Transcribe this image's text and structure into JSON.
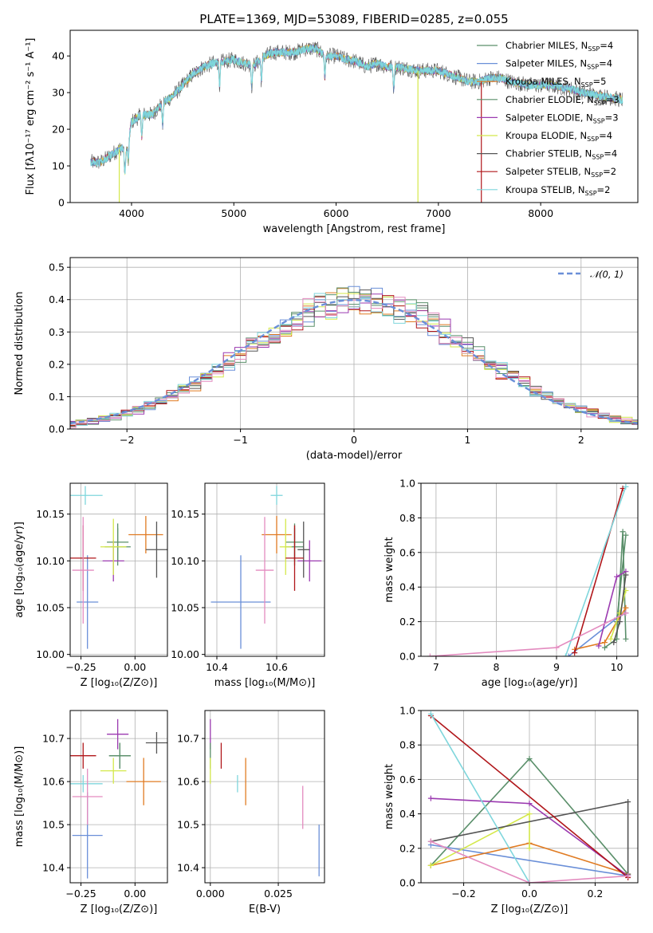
{
  "figure_title": "PLATE=1369, MJD=53089, FIBERID=0285, z=0.055",
  "colors": {
    "Chabrier MILES": "#5a8f6a",
    "Salpeter MILES": "#6a8fd8",
    "Kroupa MILES": "#e07b22",
    "Chabrier ELODIE": "#5a8f6a",
    "Salpeter ELODIE": "#9b3ab0",
    "Kroupa ELODIE": "#d4e84a",
    "Chabrier STELIB": "#555555",
    "Salpeter STELIB": "#b0161a",
    "Kroupa STELIB": "#7fd6dc",
    "grid": "#b0b0b0"
  },
  "chart_data": [
    {
      "id": "spectrum",
      "type": "line",
      "title": "PLATE=1369, MJD=53089, FIBERID=0285, z=0.055",
      "xlabel": "wavelength [Angstrom, rest frame]",
      "ylabel": "Flux [fλ10⁻¹⁷ erg cm⁻² s⁻¹ A⁻¹]",
      "xlim": [
        3400,
        8950
      ],
      "ylim": [
        0,
        47
      ],
      "xticks": [
        4000,
        5000,
        6000,
        7000,
        8000
      ],
      "yticks": [
        0,
        10,
        20,
        30,
        40
      ],
      "grid": false,
      "legend_position": "top-right",
      "legend": [
        {
          "name": "Chabrier MILES, N",
          "sub": "SSP",
          "value": "=4"
        },
        {
          "name": "Salpeter MILES, N",
          "sub": "SSP",
          "value": "=4"
        },
        {
          "name": "Kroupa MILES, N",
          "sub": "SSP",
          "value": "=5"
        },
        {
          "name": "Chabrier ELODIE, N",
          "sub": "SSP",
          "value": "=3"
        },
        {
          "name": "Salpeter ELODIE, N",
          "sub": "SSP",
          "value": "=3"
        },
        {
          "name": "Kroupa ELODIE, N",
          "sub": "SSP",
          "value": "=4"
        },
        {
          "name": "Chabrier STELIB, N",
          "sub": "SSP",
          "value": "=4"
        },
        {
          "name": "Salpeter STELIB, N",
          "sub": "SSP",
          "value": "=2"
        },
        {
          "name": "Kroupa STELIB, N",
          "sub": "SSP",
          "value": "=2"
        }
      ],
      "continuum": [
        [
          3600,
          11
        ],
        [
          3700,
          11
        ],
        [
          3800,
          13
        ],
        [
          3900,
          15
        ],
        [
          3950,
          14
        ],
        [
          4000,
          22
        ],
        [
          4100,
          24
        ],
        [
          4200,
          24
        ],
        [
          4300,
          27
        ],
        [
          4400,
          29
        ],
        [
          4500,
          32
        ],
        [
          4600,
          35
        ],
        [
          4700,
          37
        ],
        [
          4800,
          38
        ],
        [
          4900,
          38.5
        ],
        [
          5000,
          39
        ],
        [
          5100,
          38
        ],
        [
          5200,
          37.5
        ],
        [
          5300,
          40
        ],
        [
          5400,
          41
        ],
        [
          5500,
          41
        ],
        [
          5600,
          41
        ],
        [
          5700,
          42
        ],
        [
          5800,
          42
        ],
        [
          5900,
          40
        ],
        [
          6000,
          40
        ],
        [
          6100,
          39
        ],
        [
          6200,
          38.5
        ],
        [
          6300,
          37
        ],
        [
          6400,
          38
        ],
        [
          6500,
          37
        ],
        [
          6600,
          37
        ],
        [
          6700,
          36.5
        ],
        [
          6800,
          36
        ],
        [
          6900,
          36
        ],
        [
          7000,
          36
        ],
        [
          7100,
          35
        ],
        [
          7200,
          34
        ],
        [
          7300,
          33
        ],
        [
          7400,
          33
        ],
        [
          7500,
          34
        ],
        [
          7600,
          34
        ],
        [
          7700,
          33
        ],
        [
          7800,
          32.5
        ],
        [
          7900,
          32
        ],
        [
          8000,
          32
        ],
        [
          8100,
          32
        ],
        [
          8200,
          31.5
        ],
        [
          8300,
          31
        ],
        [
          8400,
          30
        ],
        [
          8500,
          29.5
        ],
        [
          8600,
          29
        ],
        [
          8700,
          28.5
        ],
        [
          8800,
          28
        ]
      ]
    },
    {
      "id": "residuals",
      "type": "line",
      "xlabel": "(data-model)/error",
      "ylabel": "Normed distribution",
      "xlim": [
        -2.5,
        2.5
      ],
      "ylim": [
        0,
        0.53
      ],
      "xticks": [
        -2,
        -1,
        0,
        1,
        2
      ],
      "yticks": [
        0.0,
        0.1,
        0.2,
        0.3,
        0.4,
        0.5
      ],
      "grid": true,
      "legend_position": "top-right",
      "legend": [
        {
          "name": "𝒩(0, 1)",
          "style": "dashed",
          "color": "#6a8fd8"
        }
      ],
      "bin_width": 0.1,
      "model": "normal(0,1)"
    },
    {
      "id": "age_vs_Z",
      "type": "scatter",
      "xlabel": "Z [log₁₀(Z/Z⊙)]",
      "ylabel": "age  [log₁₀(age/yr)]",
      "xlim": [
        -0.3,
        0.15
      ],
      "ylim": [
        9.998,
        10.183
      ],
      "xticks": [
        -0.25,
        0.0
      ],
      "yticks": [
        10.0,
        10.05,
        10.1,
        10.15
      ],
      "grid": true,
      "series": [
        {
          "name": "Chabrier MILES",
          "x": -0.08,
          "xerr": 0.06,
          "y": 10.115,
          "yerr": 0.02
        },
        {
          "name": "Salpeter MILES",
          "x": -0.22,
          "xerr": 0.05,
          "y": 10.056,
          "yerr": 0.05
        },
        {
          "name": "Kroupa MILES",
          "x": 0.05,
          "xerr": 0.08,
          "y": 10.128,
          "yerr": 0.02
        },
        {
          "name": "Chabrier ELODIE",
          "x": -0.08,
          "xerr": 0.05,
          "y": 10.12,
          "yerr": 0.02
        },
        {
          "name": "Salpeter ELODIE",
          "x": -0.1,
          "xerr": 0.05,
          "y": 10.1,
          "yerr": 0.022
        },
        {
          "name": "Kroupa ELODIE",
          "x": -0.1,
          "xerr": 0.06,
          "y": 10.115,
          "yerr": 0.03
        },
        {
          "name": "Chabrier STELIB",
          "x": 0.1,
          "xerr": 0.05,
          "y": 10.112,
          "yerr": 0.03
        },
        {
          "name": "Salpeter STELIB",
          "x": -0.24,
          "xerr": 0.06,
          "y": 10.103,
          "yerr": 0.035
        },
        {
          "name": "Kroupa STELIB",
          "x": -0.23,
          "xerr": 0.08,
          "y": 10.17,
          "yerr": 0.01
        },
        {
          "name": "pink",
          "color": "#e38bbf",
          "x": -0.24,
          "xerr": 0.05,
          "y": 10.09,
          "yerr": 0.057
        }
      ]
    },
    {
      "id": "age_vs_mass",
      "type": "scatter",
      "xlabel": "mass [log₁₀(M/M⊙)]",
      "ylabel": "",
      "xlim": [
        10.36,
        10.76
      ],
      "ylim": [
        9.998,
        10.183
      ],
      "xticks": [
        10.4,
        10.6
      ],
      "yticks": [
        10.0,
        10.05,
        10.1,
        10.15
      ],
      "grid": true,
      "series": [
        {
          "name": "Chabrier MILES",
          "x": 10.66,
          "xerr": 0.03,
          "y": 10.115,
          "yerr": 0.02
        },
        {
          "name": "Salpeter MILES",
          "x": 10.48,
          "xerr": 0.1,
          "y": 10.056,
          "yerr": 0.05
        },
        {
          "name": "Kroupa MILES",
          "x": 10.6,
          "xerr": 0.05,
          "y": 10.128,
          "yerr": 0.02
        },
        {
          "name": "Chabrier ELODIE",
          "x": 10.66,
          "xerr": 0.03,
          "y": 10.12,
          "yerr": 0.02
        },
        {
          "name": "Salpeter ELODIE",
          "x": 10.71,
          "xerr": 0.04,
          "y": 10.1,
          "yerr": 0.022
        },
        {
          "name": "Kroupa ELODIE",
          "x": 10.63,
          "xerr": 0.02,
          "y": 10.115,
          "yerr": 0.03
        },
        {
          "name": "Chabrier STELIB",
          "x": 10.69,
          "xerr": 0.02,
          "y": 10.112,
          "yerr": 0.03
        },
        {
          "name": "Salpeter STELIB",
          "x": 10.66,
          "xerr": 0.03,
          "y": 10.103,
          "yerr": 0.035
        },
        {
          "name": "Kroupa STELIB",
          "x": 10.6,
          "xerr": 0.02,
          "y": 10.17,
          "yerr": 0.01
        },
        {
          "name": "pink",
          "color": "#e38bbf",
          "x": 10.56,
          "xerr": 0.03,
          "y": 10.09,
          "yerr": 0.057
        }
      ]
    },
    {
      "id": "weight_vs_age",
      "type": "line",
      "xlabel": "age  [log₁₀(age/yr)]",
      "ylabel": "mass weight",
      "xlim": [
        6.75,
        10.35
      ],
      "ylim": [
        0,
        1.0
      ],
      "xticks": [
        7,
        8,
        9,
        10
      ],
      "yticks": [
        0.0,
        0.2,
        0.4,
        0.6,
        0.8,
        1.0
      ],
      "grid": true,
      "series": [
        {
          "name": "Chabrier MILES",
          "x": [
            9.8,
            10.0,
            10.1,
            10.15
          ],
          "y": [
            0.05,
            0.1,
            0.72,
            0.1
          ]
        },
        {
          "name": "Salpeter MILES",
          "x": [
            9.2,
            10.0,
            10.15
          ],
          "y": [
            0.0,
            0.22,
            0.25
          ]
        },
        {
          "name": "Kroupa MILES",
          "x": [
            9.3,
            9.8,
            10.0,
            10.15
          ],
          "y": [
            0.04,
            0.08,
            0.2,
            0.28
          ]
        },
        {
          "name": "Chabrier ELODIE",
          "x": [
            10.0,
            10.15
          ],
          "y": [
            0.2,
            0.7
          ]
        },
        {
          "name": "Salpeter ELODIE",
          "x": [
            9.7,
            10.0,
            10.15
          ],
          "y": [
            0.06,
            0.46,
            0.49
          ]
        },
        {
          "name": "Kroupa ELODIE",
          "x": [
            9.9,
            10.05,
            10.15
          ],
          "y": [
            0.1,
            0.25,
            0.38
          ]
        },
        {
          "name": "Chabrier STELIB",
          "x": [
            9.95,
            10.05,
            10.15
          ],
          "y": [
            0.08,
            0.2,
            0.47
          ]
        },
        {
          "name": "Salpeter STELIB",
          "x": [
            9.3,
            10.1
          ],
          "y": [
            0.02,
            0.97
          ]
        },
        {
          "name": "Kroupa STELIB",
          "x": [
            9.15,
            10.15
          ],
          "y": [
            0.0,
            0.98
          ]
        },
        {
          "name": "pink",
          "color": "#e38bbf",
          "x": [
            6.9,
            9.0,
            10.15
          ],
          "y": [
            0.0,
            0.05,
            0.25
          ]
        }
      ]
    },
    {
      "id": "mass_vs_Z",
      "type": "scatter",
      "xlabel": "Z [log₁₀(Z/Z⊙)]",
      "ylabel": "mass [log₁₀(M/M⊙)]",
      "xlim": [
        -0.3,
        0.15
      ],
      "ylim": [
        10.365,
        10.765
      ],
      "xticks": [
        -0.25,
        0.0
      ],
      "yticks": [
        10.4,
        10.5,
        10.6,
        10.7
      ],
      "grid": true,
      "series": [
        {
          "name": "Chabrier MILES",
          "x": -0.07,
          "xerr": 0.05,
          "y": 10.66,
          "yerr": 0.03
        },
        {
          "name": "Salpeter MILES",
          "x": -0.22,
          "xerr": 0.07,
          "y": 10.475,
          "yerr": 0.1
        },
        {
          "name": "Kroupa MILES",
          "x": 0.04,
          "xerr": 0.08,
          "y": 10.6,
          "yerr": 0.055
        },
        {
          "name": "Chabrier ELODIE",
          "x": -0.07,
          "xerr": 0.05,
          "y": 10.66,
          "yerr": 0.03
        },
        {
          "name": "Salpeter ELODIE",
          "x": -0.08,
          "xerr": 0.05,
          "y": 10.71,
          "yerr": 0.035
        },
        {
          "name": "Kroupa ELODIE",
          "x": -0.1,
          "xerr": 0.06,
          "y": 10.625,
          "yerr": 0.03
        },
        {
          "name": "Chabrier STELIB",
          "x": 0.1,
          "xerr": 0.05,
          "y": 10.69,
          "yerr": 0.025
        },
        {
          "name": "Salpeter STELIB",
          "x": -0.24,
          "xerr": 0.06,
          "y": 10.66,
          "yerr": 0.03
        },
        {
          "name": "Kroupa STELIB",
          "x": -0.24,
          "xerr": 0.09,
          "y": 10.595,
          "yerr": 0.02
        },
        {
          "name": "pink",
          "color": "#e38bbf",
          "x": -0.22,
          "xerr": 0.07,
          "y": 10.565,
          "yerr": 0.065
        }
      ]
    },
    {
      "id": "mass_vs_ebv",
      "type": "scatter",
      "xlabel": "E(B-V)",
      "ylabel": "",
      "xlim": [
        -0.002,
        0.042
      ],
      "ylim": [
        10.365,
        10.765
      ],
      "xticks": [
        0.0,
        0.025
      ],
      "xtick_labels": [
        "0.000",
        "0.025"
      ],
      "yticks": [
        10.4,
        10.5,
        10.6,
        10.7
      ],
      "grid": true,
      "series": [
        {
          "name": "Salpeter MILES",
          "x": 0.04,
          "y": 10.44,
          "yerr": 0.06
        },
        {
          "name": "Kroupa MILES",
          "x": 0.013,
          "y": 10.6,
          "yerr": 0.055
        },
        {
          "name": "Salpeter ELODIE",
          "x": 0.0,
          "y": 10.71,
          "yerr": 0.035
        },
        {
          "name": "Chabrier ELODIE",
          "x": 0.0,
          "y": 10.66,
          "yerr": 0.03
        },
        {
          "name": "Kroupa ELODIE",
          "x": 0.0,
          "y": 10.625,
          "yerr": 0.03
        },
        {
          "name": "Salpeter STELIB",
          "x": 0.004,
          "y": 10.66,
          "yerr": 0.03
        },
        {
          "name": "Kroupa STELIB",
          "x": 0.01,
          "y": 10.595,
          "yerr": 0.02
        },
        {
          "name": "pink",
          "color": "#e38bbf",
          "x": 0.034,
          "y": 10.54,
          "yerr": 0.05
        }
      ]
    },
    {
      "id": "weight_vs_Z",
      "type": "line",
      "xlabel": "Z [log₁₀(Z/Z⊙)]",
      "ylabel": "mass weight",
      "xlim": [
        -0.33,
        0.33
      ],
      "ylim": [
        0,
        1.0
      ],
      "xticks": [
        -0.2,
        0.0,
        0.2
      ],
      "yticks": [
        0.0,
        0.2,
        0.4,
        0.6,
        0.8,
        1.0
      ],
      "grid": true,
      "series": [
        {
          "name": "Chabrier MILES",
          "x": [
            -0.3,
            0.0,
            0.3
          ],
          "y": [
            0.1,
            0.72,
            0.05
          ]
        },
        {
          "name": "Salpeter MILES",
          "x": [
            -0.3,
            0.3
          ],
          "y": [
            0.22,
            0.04
          ]
        },
        {
          "name": "Kroupa MILES",
          "x": [
            -0.3,
            0.0,
            0.3
          ],
          "y": [
            0.1,
            0.23,
            0.05
          ]
        },
        {
          "name": "Salpeter ELODIE",
          "x": [
            -0.3,
            0.0,
            0.3
          ],
          "y": [
            0.49,
            0.46,
            0.04
          ]
        },
        {
          "name": "Kroupa ELODIE",
          "x": [
            -0.3,
            0.0,
            0.0
          ],
          "y": [
            0.1,
            0.4,
            0.2
          ]
        },
        {
          "name": "Chabrier STELIB",
          "x": [
            -0.3,
            0.3,
            0.3
          ],
          "y": [
            0.24,
            0.47,
            0.05
          ]
        },
        {
          "name": "Salpeter STELIB",
          "x": [
            -0.3,
            0.3
          ],
          "y": [
            0.97,
            0.03
          ]
        },
        {
          "name": "Kroupa STELIB",
          "x": [
            -0.3,
            0.0
          ],
          "y": [
            0.98,
            0.0
          ]
        },
        {
          "name": "pink",
          "color": "#e38bbf",
          "x": [
            -0.3,
            0.0,
            0.3
          ],
          "y": [
            0.24,
            0.0,
            0.04
          ]
        }
      ]
    }
  ]
}
